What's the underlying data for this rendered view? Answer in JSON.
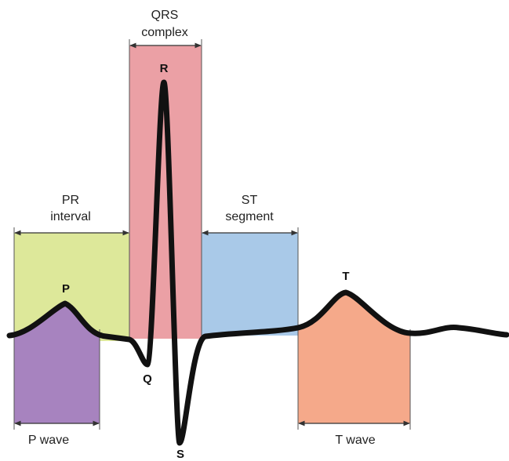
{
  "qrs_complex": {
    "label_lines": [
      "QRS",
      "complex"
    ]
  },
  "pr_interval": {
    "label_lines": [
      "PR",
      "interval"
    ]
  },
  "st_segment": {
    "label_lines": [
      "ST",
      "segment"
    ]
  },
  "p_wave": {
    "label": "P wave"
  },
  "t_wave": {
    "label": "T wave"
  },
  "points": {
    "p": "P",
    "q": "Q",
    "r": "R",
    "s": "S",
    "t": "T"
  }
}
